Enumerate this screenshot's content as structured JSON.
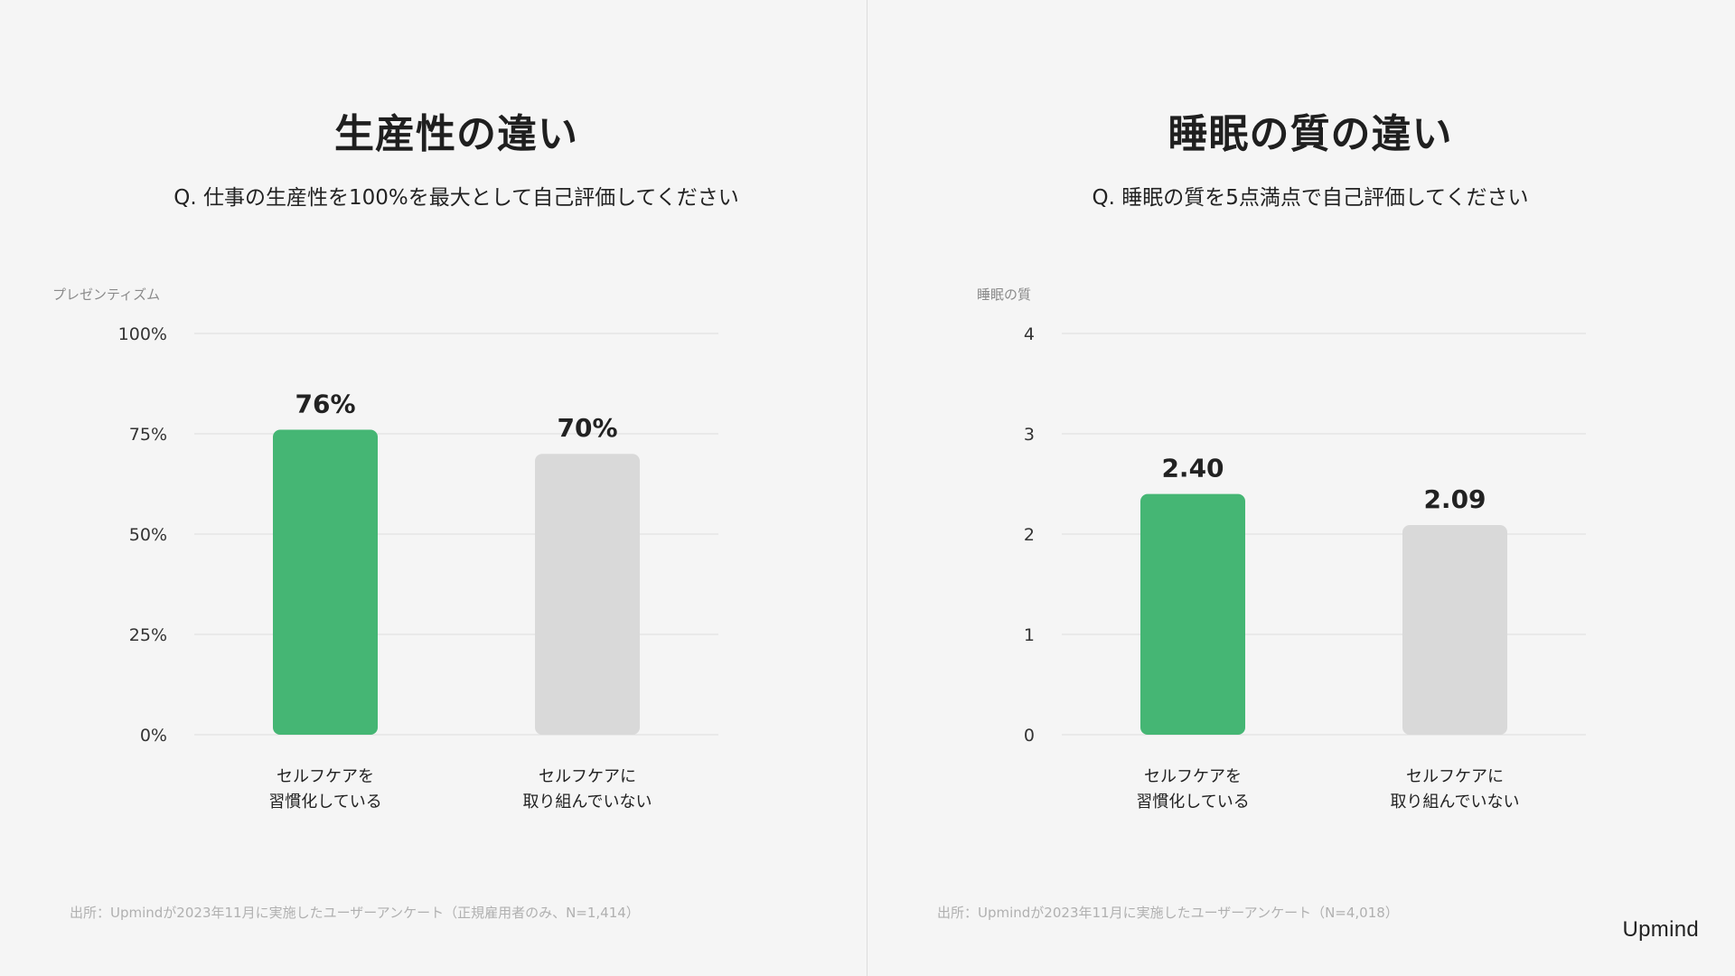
{
  "panels": [
    {
      "title": "生産性の違い",
      "question": "Q. 仕事の生産性を100%を最大として自己評価してください",
      "source": "出所：Upmindが2023年11月に実施したユーザーアンケート（正規雇用者のみ、N=1,414）"
    },
    {
      "title": "睡眠の質の違い",
      "question": "Q. 睡眠の質を5点満点で自己評価してください",
      "source": "出所：Upmindが2023年11月に実施したユーザーアンケート（N=4,018）"
    }
  ],
  "logo": "Upmind",
  "colors": {
    "highlight": "#45b674",
    "muted": "#d9d9d9",
    "grid": "#dddddd",
    "background": "#f5f5f5"
  },
  "chart_data": [
    {
      "type": "bar",
      "ylabel": "プレゼンティズム",
      "categories": [
        [
          "セルフケアを",
          "習慣化している"
        ],
        [
          "セルフケアに",
          "取り組んでいない"
        ]
      ],
      "values": [
        76,
        70
      ],
      "value_labels": [
        "76%",
        "70%"
      ],
      "ylim": [
        0,
        100
      ],
      "yticks": [
        0,
        25,
        50,
        75,
        100
      ],
      "ytick_labels": [
        "0%",
        "25%",
        "50%",
        "75%",
        "100%"
      ],
      "grid": true
    },
    {
      "type": "bar",
      "ylabel": "睡眠の質",
      "categories": [
        [
          "セルフケアを",
          "習慣化している"
        ],
        [
          "セルフケアに",
          "取り組んでいない"
        ]
      ],
      "values": [
        2.4,
        2.09
      ],
      "value_labels": [
        "2.40",
        "2.09"
      ],
      "ylim": [
        0,
        4
      ],
      "yticks": [
        0,
        1,
        2,
        3,
        4
      ],
      "ytick_labels": [
        "0",
        "1",
        "2",
        "3",
        "4"
      ],
      "grid": true
    }
  ]
}
